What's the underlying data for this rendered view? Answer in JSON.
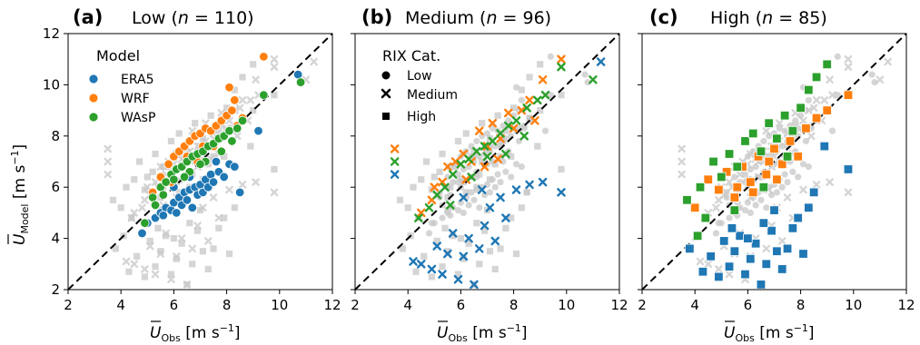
{
  "colors": {
    "ERA5": "#1f77b4",
    "WRF": "#ff7f0e",
    "WAsP": "#2ca02c",
    "background": "#c7c7c7"
  },
  "axis": {
    "xlabel_main": "U",
    "xlabel_sub": "Obs",
    "xlabel_unit": " [m s",
    "xlabel_exp": "−1",
    "xlabel_close": "]",
    "ylabel_main": "U",
    "ylabel_sub": "Model",
    "ylabel_unit": " [m s",
    "ylabel_exp": "−1",
    "ylabel_close": "]"
  },
  "legend_model": {
    "title": "Model",
    "items": [
      {
        "label": "ERA5",
        "color": "#1f77b4"
      },
      {
        "label": "WRF",
        "color": "#ff7f0e"
      },
      {
        "label": "WAsP",
        "color": "#2ca02c"
      }
    ]
  },
  "legend_rix": {
    "title": "RIX Cat.",
    "items": [
      {
        "label": "Low",
        "marker": "circle"
      },
      {
        "label": "Medium",
        "marker": "x"
      },
      {
        "label": "High",
        "marker": "square"
      }
    ]
  },
  "chart_data": [
    {
      "type": "scatter",
      "letter": "(a)",
      "title": "Low (",
      "n_label": "n",
      "n_value": " = 110)",
      "category": "Low",
      "marker": "circle",
      "xlim": [
        2,
        12
      ],
      "ylim": [
        2,
        12
      ],
      "xticks": [
        2,
        4,
        6,
        8,
        10,
        12
      ],
      "yticks": [
        2,
        4,
        6,
        8,
        10,
        12
      ],
      "reference_line": "1:1 dashed",
      "series": [
        {
          "name": "ERA5",
          "points": [
            [
              4.8,
              4.2
            ],
            [
              5.0,
              4.6
            ],
            [
              5.3,
              4.8
            ],
            [
              5.5,
              5.0
            ],
            [
              5.7,
              5.2
            ],
            [
              5.9,
              5.1
            ],
            [
              6.0,
              5.4
            ],
            [
              6.1,
              5.0
            ],
            [
              6.2,
              5.6
            ],
            [
              6.3,
              5.3
            ],
            [
              6.4,
              5.8
            ],
            [
              6.5,
              5.5
            ],
            [
              6.6,
              5.9
            ],
            [
              6.7,
              5.2
            ],
            [
              6.8,
              6.0
            ],
            [
              6.9,
              5.7
            ],
            [
              7.0,
              6.1
            ],
            [
              7.1,
              5.8
            ],
            [
              7.2,
              6.3
            ],
            [
              7.3,
              6.0
            ],
            [
              7.4,
              6.5
            ],
            [
              7.5,
              6.2
            ],
            [
              7.7,
              6.6
            ],
            [
              7.9,
              6.4
            ],
            [
              8.1,
              6.9
            ],
            [
              8.3,
              6.8
            ],
            [
              8.5,
              5.8
            ],
            [
              9.2,
              8.2
            ],
            [
              10.7,
              10.4
            ],
            [
              5.6,
              4.9
            ],
            [
              6.0,
              6.0
            ],
            [
              6.6,
              6.4
            ],
            [
              7.6,
              7.0
            ]
          ]
        },
        {
          "name": "WRF",
          "points": [
            [
              5.2,
              5.8
            ],
            [
              5.5,
              6.4
            ],
            [
              5.8,
              6.9
            ],
            [
              6.0,
              7.2
            ],
            [
              6.2,
              7.4
            ],
            [
              6.4,
              7.6
            ],
            [
              6.6,
              7.8
            ],
            [
              6.8,
              8.0
            ],
            [
              7.0,
              8.1
            ],
            [
              7.2,
              8.3
            ],
            [
              7.4,
              8.2
            ],
            [
              7.6,
              8.4
            ],
            [
              7.8,
              8.6
            ],
            [
              8.0,
              8.8
            ],
            [
              8.2,
              9.0
            ],
            [
              8.4,
              8.4
            ],
            [
              8.6,
              8.7
            ],
            [
              8.1,
              9.9
            ],
            [
              9.4,
              11.1
            ],
            [
              8.3,
              9.4
            ],
            [
              6.5,
              7.2
            ],
            [
              7.1,
              7.6
            ],
            [
              5.9,
              6.2
            ],
            [
              6.9,
              7.0
            ],
            [
              7.5,
              7.6
            ]
          ]
        },
        {
          "name": "WAsP",
          "points": [
            [
              4.9,
              4.6
            ],
            [
              5.2,
              5.6
            ],
            [
              5.5,
              6.0
            ],
            [
              5.7,
              6.2
            ],
            [
              5.9,
              6.5
            ],
            [
              6.1,
              6.7
            ],
            [
              6.3,
              6.8
            ],
            [
              6.5,
              7.0
            ],
            [
              6.7,
              7.2
            ],
            [
              6.9,
              7.3
            ],
            [
              7.1,
              7.4
            ],
            [
              7.3,
              7.6
            ],
            [
              7.5,
              7.7
            ],
            [
              7.7,
              7.9
            ],
            [
              7.9,
              8.0
            ],
            [
              8.1,
              8.2
            ],
            [
              8.4,
              8.3
            ],
            [
              8.6,
              8.6
            ],
            [
              9.4,
              9.6
            ],
            [
              10.8,
              10.1
            ],
            [
              6.0,
              6.3
            ],
            [
              6.6,
              6.6
            ],
            [
              7.2,
              7.0
            ],
            [
              5.6,
              5.7
            ],
            [
              6.4,
              6.4
            ],
            [
              7.0,
              6.9
            ],
            [
              7.8,
              7.4
            ],
            [
              8.2,
              7.8
            ],
            [
              5.3,
              5.3
            ]
          ]
        }
      ]
    },
    {
      "type": "scatter",
      "letter": "(b)",
      "title": "Medium (",
      "n_label": "n",
      "n_value": " = 96)",
      "category": "Medium",
      "marker": "x",
      "xlim": [
        2,
        12
      ],
      "ylim": [
        2,
        12
      ],
      "xticks": [
        2,
        4,
        6,
        8,
        10,
        12
      ],
      "yticks": [
        2,
        4,
        6,
        8,
        10,
        12
      ],
      "reference_line": "1:1 dashed",
      "series": [
        {
          "name": "ERA5",
          "points": [
            [
              3.5,
              6.5
            ],
            [
              4.2,
              3.1
            ],
            [
              4.5,
              3.0
            ],
            [
              4.9,
              2.8
            ],
            [
              5.1,
              3.7
            ],
            [
              5.3,
              2.6
            ],
            [
              5.5,
              3.4
            ],
            [
              5.7,
              4.2
            ],
            [
              5.9,
              2.4
            ],
            [
              6.1,
              3.3
            ],
            [
              6.3,
              4.0
            ],
            [
              6.5,
              2.2
            ],
            [
              6.7,
              3.6
            ],
            [
              6.9,
              4.5
            ],
            [
              7.1,
              5.2
            ],
            [
              7.3,
              3.9
            ],
            [
              7.5,
              5.6
            ],
            [
              7.7,
              4.8
            ],
            [
              8.1,
              5.9
            ],
            [
              8.6,
              6.1
            ],
            [
              9.1,
              6.2
            ],
            [
              9.8,
              5.8
            ],
            [
              11.3,
              10.9
            ],
            [
              6.1,
              5.6
            ],
            [
              6.8,
              5.9
            ]
          ]
        },
        {
          "name": "WRF",
          "points": [
            [
              3.5,
              7.5
            ],
            [
              4.5,
              5.0
            ],
            [
              4.9,
              5.5
            ],
            [
              5.3,
              6.2
            ],
            [
              5.5,
              6.8
            ],
            [
              5.8,
              7.0
            ],
            [
              6.1,
              7.3
            ],
            [
              6.4,
              7.0
            ],
            [
              6.7,
              8.2
            ],
            [
              7.0,
              7.6
            ],
            [
              7.2,
              8.5
            ],
            [
              7.5,
              7.9
            ],
            [
              7.8,
              8.9
            ],
            [
              8.0,
              8.3
            ],
            [
              8.3,
              9.0
            ],
            [
              8.6,
              9.4
            ],
            [
              9.1,
              10.2
            ],
            [
              9.8,
              11.0
            ],
            [
              6.2,
              6.3
            ],
            [
              5.0,
              6.0
            ],
            [
              6.9,
              6.8
            ],
            [
              7.4,
              7.1
            ],
            [
              8.8,
              8.6
            ]
          ]
        },
        {
          "name": "WAsP",
          "points": [
            [
              3.5,
              7.0
            ],
            [
              4.4,
              4.8
            ],
            [
              4.8,
              5.2
            ],
            [
              5.1,
              5.7
            ],
            [
              5.4,
              6.0
            ],
            [
              5.7,
              6.5
            ],
            [
              6.0,
              6.9
            ],
            [
              6.3,
              7.1
            ],
            [
              6.6,
              7.4
            ],
            [
              6.9,
              7.6
            ],
            [
              7.2,
              7.8
            ],
            [
              7.5,
              8.1
            ],
            [
              7.8,
              8.4
            ],
            [
              8.1,
              8.6
            ],
            [
              8.5,
              9.1
            ],
            [
              8.9,
              9.4
            ],
            [
              9.8,
              10.7
            ],
            [
              11.0,
              10.2
            ],
            [
              9.2,
              9.6
            ],
            [
              6.4,
              6.4
            ],
            [
              7.0,
              7.2
            ],
            [
              5.6,
              5.3
            ],
            [
              7.7,
              7.3
            ],
            [
              8.4,
              8.0
            ]
          ]
        }
      ]
    },
    {
      "type": "scatter",
      "letter": "(c)",
      "title": "High (",
      "n_label": "n",
      "n_value": " = 85)",
      "category": "High",
      "marker": "square",
      "xlim": [
        2,
        12
      ],
      "ylim": [
        2,
        12
      ],
      "xticks": [
        2,
        4,
        6,
        8,
        10,
        12
      ],
      "yticks": [
        2,
        4,
        6,
        8,
        10,
        12
      ],
      "reference_line": "1:1 dashed",
      "series": [
        {
          "name": "ERA5",
          "points": [
            [
              3.8,
              3.6
            ],
            [
              4.3,
              2.7
            ],
            [
              4.6,
              3.3
            ],
            [
              4.9,
              2.5
            ],
            [
              5.1,
              3.9
            ],
            [
              5.3,
              2.9
            ],
            [
              5.5,
              3.5
            ],
            [
              5.7,
              4.1
            ],
            [
              5.9,
              2.6
            ],
            [
              6.1,
              3.2
            ],
            [
              6.3,
              3.8
            ],
            [
              6.5,
              2.2
            ],
            [
              6.7,
              3.0
            ],
            [
              6.9,
              4.3
            ],
            [
              7.1,
              3.5
            ],
            [
              7.3,
              2.8
            ],
            [
              7.5,
              3.6
            ],
            [
              7.7,
              4.4
            ],
            [
              7.9,
              4.8
            ],
            [
              8.1,
              3.4
            ],
            [
              8.3,
              5.2
            ],
            [
              8.5,
              5.8
            ],
            [
              8.9,
              7.6
            ],
            [
              9.8,
              6.7
            ],
            [
              6.0,
              4.0
            ],
            [
              6.6,
              4.6
            ],
            [
              5.4,
              4.4
            ],
            [
              7.0,
              5.1
            ]
          ]
        },
        {
          "name": "WRF",
          "points": [
            [
              4.0,
              5.2
            ],
            [
              4.5,
              6.3
            ],
            [
              4.9,
              5.9
            ],
            [
              5.2,
              6.6
            ],
            [
              5.5,
              5.6
            ],
            [
              5.8,
              6.8
            ],
            [
              6.1,
              6.2
            ],
            [
              6.4,
              7.2
            ],
            [
              6.7,
              6.5
            ],
            [
              7.0,
              7.5
            ],
            [
              7.3,
              6.9
            ],
            [
              7.6,
              7.8
            ],
            [
              7.9,
              7.2
            ],
            [
              8.2,
              8.3
            ],
            [
              8.6,
              8.7
            ],
            [
              9.0,
              9.0
            ],
            [
              9.8,
              9.6
            ],
            [
              6.2,
              5.8
            ],
            [
              5.6,
              6.0
            ],
            [
              7.1,
              6.3
            ],
            [
              6.8,
              7.0
            ]
          ]
        },
        {
          "name": "WAsP",
          "points": [
            [
              3.7,
              5.5
            ],
            [
              4.2,
              6.0
            ],
            [
              4.4,
              4.8
            ],
            [
              4.7,
              7.0
            ],
            [
              5.0,
              6.4
            ],
            [
              5.3,
              7.3
            ],
            [
              5.6,
              6.8
            ],
            [
              5.9,
              7.8
            ],
            [
              6.2,
              8.1
            ],
            [
              6.5,
              7.4
            ],
            [
              6.8,
              8.5
            ],
            [
              7.1,
              7.9
            ],
            [
              7.4,
              8.8
            ],
            [
              7.7,
              8.2
            ],
            [
              8.0,
              9.1
            ],
            [
              8.3,
              9.8
            ],
            [
              8.6,
              10.3
            ],
            [
              9.0,
              10.8
            ],
            [
              4.1,
              4.1
            ],
            [
              5.5,
              5.1
            ],
            [
              6.6,
              6.0
            ],
            [
              7.5,
              7.2
            ]
          ]
        }
      ]
    }
  ]
}
